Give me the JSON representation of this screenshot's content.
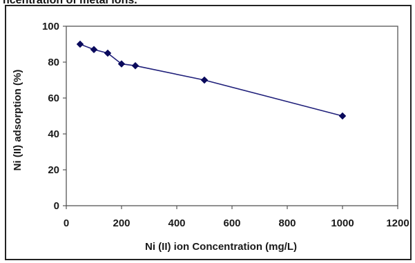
{
  "caption_fragment": "ncentration of metal ions.",
  "chart_data": {
    "type": "line",
    "xlabel": "Ni (II) ion Concentration (mg/L)",
    "ylabel": "Ni (II) adsorption (%)",
    "xlim": [
      0,
      1200
    ],
    "ylim": [
      0,
      100
    ],
    "x_ticks": [
      0,
      200,
      400,
      600,
      800,
      1000,
      1200
    ],
    "y_ticks": [
      0,
      20,
      40,
      60,
      80,
      100
    ],
    "grid": false,
    "legend": "none",
    "series": [
      {
        "x": [
          50,
          100,
          150,
          200,
          250,
          500,
          1000
        ],
        "values": [
          90,
          87,
          85,
          79,
          78,
          70,
          50
        ]
      }
    ],
    "colors": {
      "line": "#1f1f7a",
      "marker": "#0a0a5c",
      "axis": "#555555"
    }
  }
}
